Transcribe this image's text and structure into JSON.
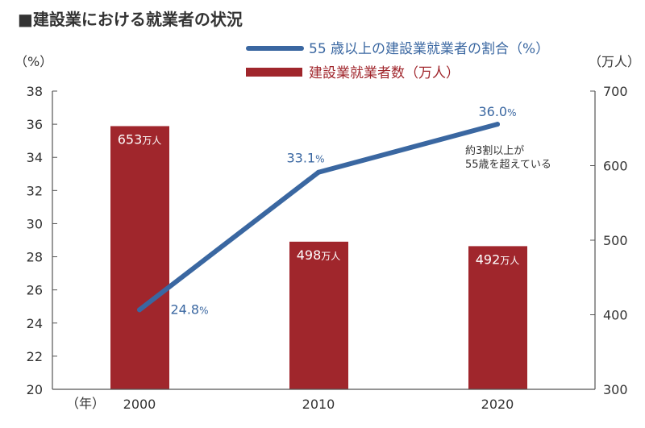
{
  "chart_data": {
    "type": "bar+line",
    "title": "■建設業における就業者の状況",
    "categories": [
      "2000",
      "2010",
      "2020"
    ],
    "xlabel": "（年）",
    "ylabel_left": "（%）",
    "ylabel_right": "（万人）",
    "ylim_left": [
      20,
      38
    ],
    "yticks_left": [
      20,
      22,
      24,
      26,
      28,
      30,
      32,
      34,
      36,
      38
    ],
    "ylim_right": [
      300,
      700
    ],
    "yticks_right": [
      300,
      400,
      500,
      600,
      700
    ],
    "series": [
      {
        "name": "建設業就業者数（万人）",
        "type": "bar",
        "axis": "right",
        "values": [
          653,
          498,
          492
        ],
        "unit_label": "万人",
        "color": "#a0262c"
      },
      {
        "name": "55 歳以上の建設業就業者の割合（%）",
        "type": "line",
        "axis": "left",
        "values": [
          24.8,
          33.1,
          36.0
        ],
        "value_labels": [
          "24.8",
          "33.1",
          "36.0"
        ],
        "unit_label": "%",
        "color": "#3a67a1"
      }
    ],
    "annotation": [
      "約3割以上が",
      "55歳を超えている"
    ],
    "legend_placement": "top-right",
    "grid": false
  }
}
